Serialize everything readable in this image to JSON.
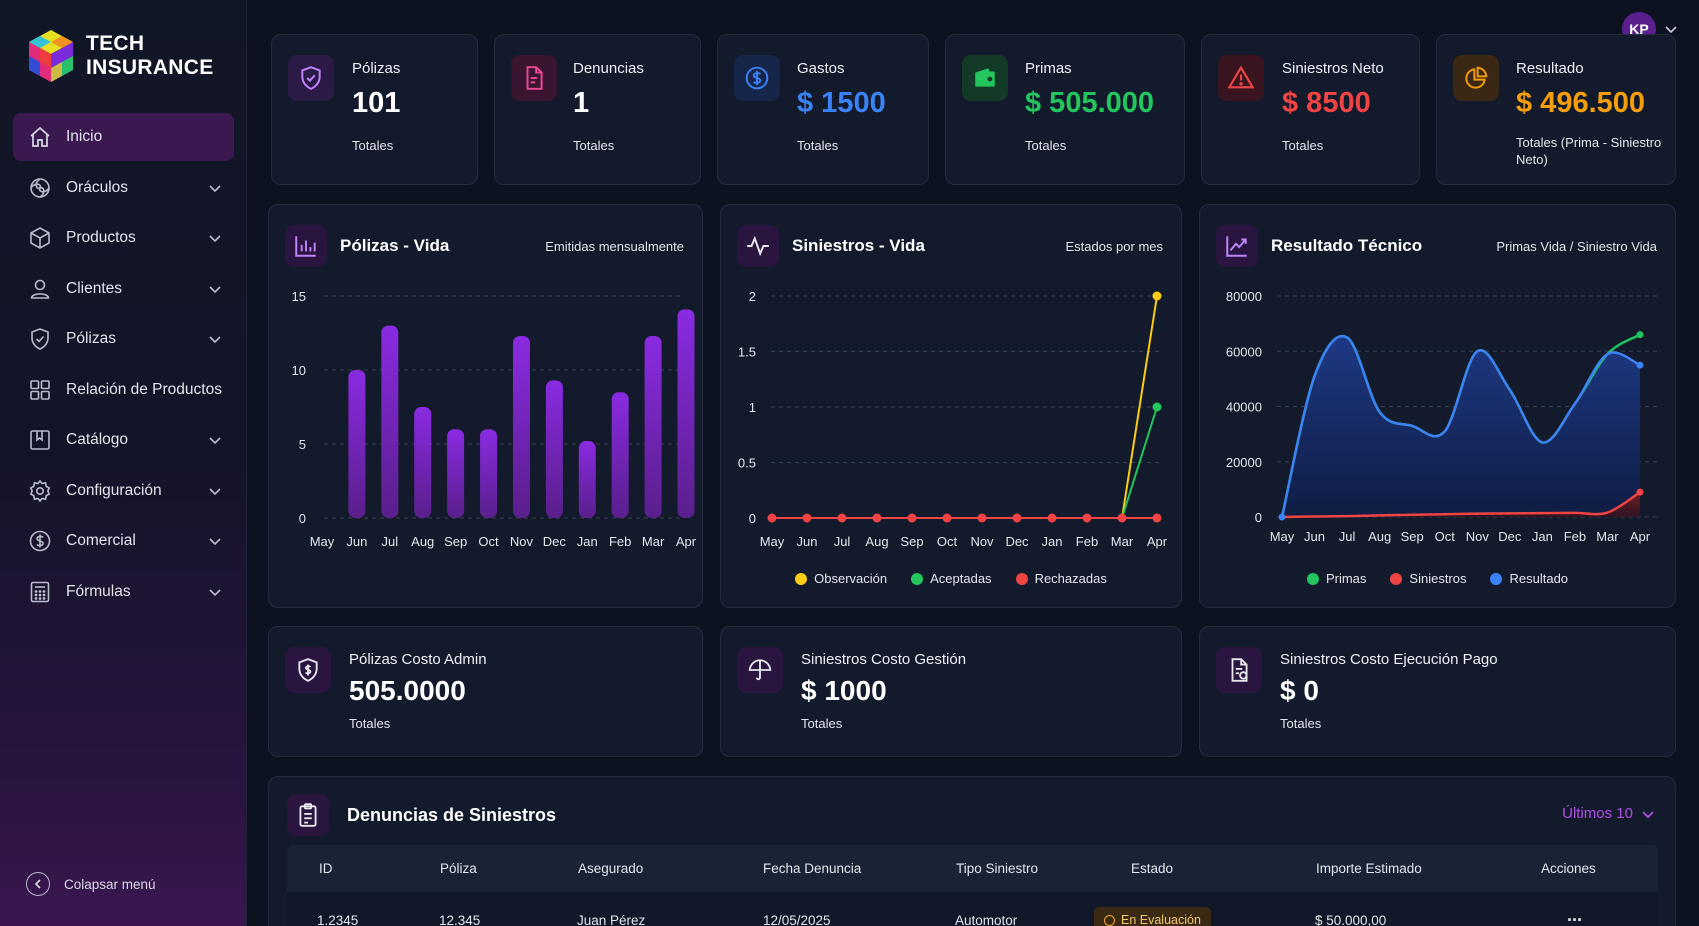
{
  "brand": {
    "line1": "TECH",
    "line2": "INSURANCE"
  },
  "sidebar": {
    "items": [
      {
        "label": "Inicio",
        "icon": "home-icon",
        "active": true,
        "has_children": false
      },
      {
        "label": "Oráculos",
        "icon": "swirl-icon",
        "has_children": true
      },
      {
        "label": "Productos",
        "icon": "box-icon",
        "has_children": true
      },
      {
        "label": "Clientes",
        "icon": "user-icon",
        "has_children": true
      },
      {
        "label": "Pólizas",
        "icon": "shield-icon",
        "has_children": true
      },
      {
        "label": "Relación de Productos",
        "icon": "grid-icon",
        "has_children": false
      },
      {
        "label": "Catálogo",
        "icon": "book-icon",
        "has_children": true
      },
      {
        "label": "Configuración",
        "icon": "gear-icon",
        "has_children": true
      },
      {
        "label": "Comercial",
        "icon": "dollar-circle-icon",
        "has_children": true
      },
      {
        "label": "Fórmulas",
        "icon": "calculator-icon",
        "has_children": true
      }
    ],
    "collapse_label": "Colapsar menú"
  },
  "user": {
    "initials": "KP"
  },
  "kpis": [
    {
      "title": "Pólizas",
      "value": "101",
      "sub": "Totales",
      "color": "#ffffff",
      "icon": "shield-check-icon"
    },
    {
      "title": "Denuncias",
      "value": "1",
      "sub": "Totales",
      "color": "#ffffff",
      "icon": "document-icon"
    },
    {
      "title": "Gastos",
      "value": "$ 1500",
      "sub": "Totales",
      "color": "#3b82f6",
      "icon": "dollar-icon"
    },
    {
      "title": "Primas",
      "value": "$ 505.000",
      "sub": "Totales",
      "color": "#22c55e",
      "icon": "wallet-icon"
    },
    {
      "title": "Siniestros Neto",
      "value": "$ 8500",
      "sub": "Totales",
      "color": "#ef4444",
      "icon": "warning-icon"
    },
    {
      "title": "Resultado",
      "value": "$ 496.500",
      "sub": "Totales (Prima - Siniestro Neto)",
      "color": "#f59e0b",
      "icon": "pie-icon"
    }
  ],
  "charts": {
    "polizas_vida": {
      "title": "Pólizas - Vida",
      "subtitle": "Emitidas mensualmente"
    },
    "siniestros_vida": {
      "title": "Siniestros - Vida",
      "subtitle": "Estados por mes",
      "legend": [
        {
          "name": "Observación",
          "color": "#facc15"
        },
        {
          "name": "Aceptadas",
          "color": "#22c55e"
        },
        {
          "name": "Rechazadas",
          "color": "#ef4444"
        }
      ]
    },
    "resultado_tecnico": {
      "title": "Resultado Técnico",
      "subtitle": "Primas Vida / Siniestro Vida",
      "legend": [
        {
          "name": "Primas",
          "color": "#22c55e"
        },
        {
          "name": "Siniestros",
          "color": "#ef4444"
        },
        {
          "name": "Resultado",
          "color": "#3b82f6"
        }
      ]
    }
  },
  "chart_data": [
    {
      "type": "bar",
      "title": "Pólizas - Vida",
      "categories": [
        "May",
        "Jun",
        "Jul",
        "Aug",
        "Sep",
        "Oct",
        "Nov",
        "Dec",
        "Jan",
        "Feb",
        "Mar",
        "Apr"
      ],
      "values": [
        0,
        10,
        13,
        7.5,
        6,
        6,
        12.3,
        9.3,
        5.2,
        8.5,
        12.3,
        14.1
      ],
      "ylim": [
        0,
        15
      ],
      "yticks": [
        0,
        5,
        10,
        15
      ],
      "grid": true
    },
    {
      "type": "line",
      "title": "Siniestros - Vida",
      "categories": [
        "May",
        "Jun",
        "Jul",
        "Aug",
        "Sep",
        "Oct",
        "Nov",
        "Dec",
        "Jan",
        "Feb",
        "Mar",
        "Apr"
      ],
      "series": [
        {
          "name": "Observación",
          "values": [
            0,
            0,
            0,
            0,
            0,
            0,
            0,
            0,
            0,
            0,
            0,
            2
          ]
        },
        {
          "name": "Aceptadas",
          "values": [
            0,
            0,
            0,
            0,
            0,
            0,
            0,
            0,
            0,
            0,
            0,
            1
          ]
        },
        {
          "name": "Rechazadas",
          "values": [
            0,
            0,
            0,
            0,
            0,
            0,
            0,
            0,
            0,
            0,
            0,
            0
          ]
        }
      ],
      "ylim": [
        0,
        2
      ],
      "yticks": [
        "0",
        "0.5",
        "1",
        "1.5",
        "2"
      ],
      "grid": true
    },
    {
      "type": "area",
      "title": "Resultado Técnico",
      "categories": [
        "May",
        "Jun",
        "Jul",
        "Aug",
        "Sep",
        "Oct",
        "Nov",
        "Dec",
        "Jan",
        "Feb",
        "Mar",
        "Apr"
      ],
      "series": [
        {
          "name": "Primas",
          "values": [
            0,
            51000,
            65000,
            38000,
            33000,
            31000,
            60000,
            46000,
            27000,
            41000,
            59000,
            66000
          ]
        },
        {
          "name": "Siniestros",
          "values": [
            0,
            200,
            300,
            600,
            800,
            1000,
            1200,
            1300,
            1400,
            1500,
            1600,
            9000
          ]
        },
        {
          "name": "Resultado",
          "values": [
            0,
            51000,
            65000,
            38000,
            33000,
            31000,
            60000,
            46000,
            27000,
            41000,
            59000,
            55000
          ]
        }
      ],
      "ylim": [
        0,
        80000
      ],
      "yticks": [
        0,
        20000,
        40000,
        60000,
        80000
      ],
      "grid": true
    }
  ],
  "costs": [
    {
      "title": "Pólizas Costo Admin",
      "value": "505.0000",
      "sub": "Totales",
      "icon": "shield-dollar-icon"
    },
    {
      "title": "Siniestros Costo Gestión",
      "value": "$ 1000",
      "sub": "Totales",
      "icon": "umbrella-icon"
    },
    {
      "title": "Siniestros Costo Ejecución Pago",
      "value": "$ 0",
      "sub": "Totales",
      "icon": "document-dollar-icon"
    }
  ],
  "table": {
    "title": "Denuncias de Siniestros",
    "filter_label": "Últimos 10",
    "columns": [
      "ID",
      "Póliza",
      "Asegurado",
      "Fecha Denuncia",
      "Tipo Siniestro",
      "Estado",
      "Importe Estimado",
      "Acciones"
    ],
    "rows": [
      {
        "id": "1.2345",
        "poliza": "12.345",
        "asegurado": "Juan Pérez",
        "fecha": "12/05/2025",
        "tipo": "Automotor",
        "estado": "En Evaluación",
        "importe": "$ 50.000,00",
        "acciones": "..."
      }
    ]
  }
}
